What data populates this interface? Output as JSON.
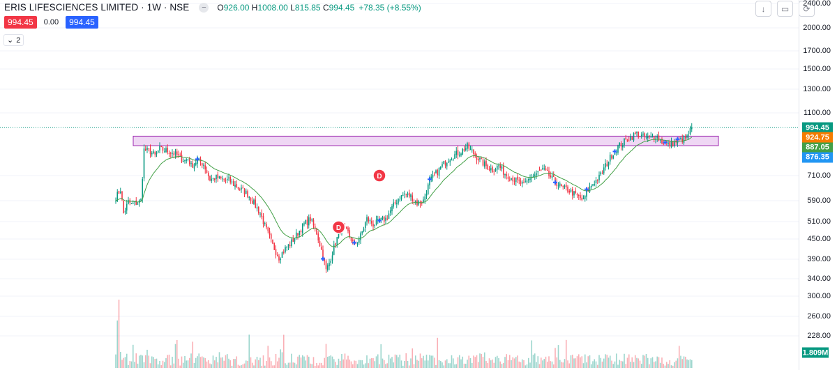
{
  "legend": {
    "title": "ERIS LIFESCIENCES LIMITED · 1W · NSE",
    "collapse_icon": "minus-icon",
    "open_label": "O",
    "open": "926.00",
    "high_label": "H",
    "high": "1008.00",
    "low_label": "L",
    "low": "815.85",
    "close_label": "C",
    "close": "994.45",
    "change": "+78.35 (+8.55%)"
  },
  "trade": {
    "sell": "994.45",
    "spread": "0.00",
    "buy": "994.45"
  },
  "indicators_toggle": {
    "icon": "chevron-down-icon",
    "count": "2"
  },
  "controls": [
    {
      "name": "scroll-down-button",
      "icon": "arrow-down-icon",
      "glyph": "↓"
    },
    {
      "name": "maximize-button",
      "icon": "maximize-icon",
      "glyph": "▭"
    },
    {
      "name": "restore-button",
      "icon": "refresh-icon",
      "glyph": "⟳"
    }
  ],
  "colors": {
    "up": "#089981",
    "down": "#f23645",
    "ma": "#43a047",
    "zone_fill": "#e9c9f0",
    "zone_border": "#9c27b0",
    "last_price_line": "#089981",
    "marker_blue": "#2962ff"
  },
  "price_labels": [
    {
      "value": "994.45",
      "color": "#089981"
    },
    {
      "value": "924.75",
      "color": "#f57c00"
    },
    {
      "value": "887.05",
      "color": "#43a047"
    },
    {
      "value": "876.35",
      "color": "#2196f3"
    }
  ],
  "volume_label": {
    "value": "1.809M",
    "color": "#089981"
  },
  "dividend_markers": [
    {
      "label": "D",
      "price": 710,
      "week": 168
    },
    {
      "label": "D",
      "price": 490,
      "week": 142
    }
  ],
  "chart_data": {
    "type": "candlestick",
    "title": "ERIS LIFESCIENCES LIMITED · 1W · NSE",
    "y_axis": {
      "scale": "log",
      "ticks": [
        "2400.00",
        "2000.00",
        "1700.00",
        "1500.00",
        "1300.00",
        "1100.00",
        "710.00",
        "590.00",
        "510.00",
        "450.00",
        "390.00",
        "340.00",
        "300.00",
        "260.00",
        "228.00"
      ],
      "range": [
        200,
        2400
      ]
    },
    "resistance_zone": [
      875,
      935
    ],
    "last_price": 994.45,
    "moving_average": "green line (EMA)",
    "weeks": 380,
    "anchors": [
      [
        0,
        605
      ],
      [
        3,
        640
      ],
      [
        5,
        540
      ],
      [
        8,
        585
      ],
      [
        10,
        575
      ],
      [
        14,
        582
      ],
      [
        16,
        590
      ],
      [
        18,
        850
      ],
      [
        22,
        840
      ],
      [
        25,
        815
      ],
      [
        28,
        855
      ],
      [
        32,
        845
      ],
      [
        36,
        835
      ],
      [
        40,
        810
      ],
      [
        44,
        790
      ],
      [
        46,
        800
      ],
      [
        48,
        760
      ],
      [
        52,
        790
      ],
      [
        56,
        770
      ],
      [
        60,
        690
      ],
      [
        64,
        700
      ],
      [
        68,
        690
      ],
      [
        72,
        685
      ],
      [
        76,
        660
      ],
      [
        80,
        640
      ],
      [
        84,
        620
      ],
      [
        88,
        580
      ],
      [
        92,
        540
      ],
      [
        96,
        480
      ],
      [
        100,
        430
      ],
      [
        104,
        395
      ],
      [
        108,
        420
      ],
      [
        112,
        440
      ],
      [
        116,
        470
      ],
      [
        120,
        500
      ],
      [
        124,
        520
      ],
      [
        128,
        470
      ],
      [
        132,
        400
      ],
      [
        134,
        360
      ],
      [
        136,
        380
      ],
      [
        140,
        440
      ],
      [
        144,
        490
      ],
      [
        148,
        470
      ],
      [
        152,
        430
      ],
      [
        156,
        460
      ],
      [
        160,
        520
      ],
      [
        164,
        500
      ],
      [
        168,
        510
      ],
      [
        172,
        520
      ],
      [
        176,
        560
      ],
      [
        180,
        600
      ],
      [
        184,
        620
      ],
      [
        188,
        610
      ],
      [
        192,
        580
      ],
      [
        196,
        590
      ],
      [
        200,
        680
      ],
      [
        204,
        720
      ],
      [
        208,
        760
      ],
      [
        212,
        800
      ],
      [
        216,
        820
      ],
      [
        220,
        840
      ],
      [
        224,
        870
      ],
      [
        228,
        830
      ],
      [
        232,
        790
      ],
      [
        236,
        760
      ],
      [
        240,
        740
      ],
      [
        244,
        760
      ],
      [
        248,
        720
      ],
      [
        252,
        700
      ],
      [
        256,
        680
      ],
      [
        260,
        660
      ],
      [
        264,
        700
      ],
      [
        268,
        720
      ],
      [
        272,
        740
      ],
      [
        276,
        710
      ],
      [
        280,
        680
      ],
      [
        284,
        650
      ],
      [
        288,
        640
      ],
      [
        292,
        620
      ],
      [
        296,
        600
      ],
      [
        298,
        590
      ],
      [
        300,
        630
      ],
      [
        304,
        670
      ],
      [
        308,
        700
      ],
      [
        312,
        760
      ],
      [
        316,
        820
      ],
      [
        320,
        870
      ],
      [
        324,
        900
      ],
      [
        328,
        930
      ],
      [
        332,
        950
      ],
      [
        336,
        930
      ],
      [
        340,
        920
      ],
      [
        344,
        940
      ],
      [
        348,
        900
      ],
      [
        352,
        880
      ],
      [
        356,
        895
      ],
      [
        360,
        910
      ],
      [
        364,
        925
      ],
      [
        367,
        994
      ]
    ]
  }
}
